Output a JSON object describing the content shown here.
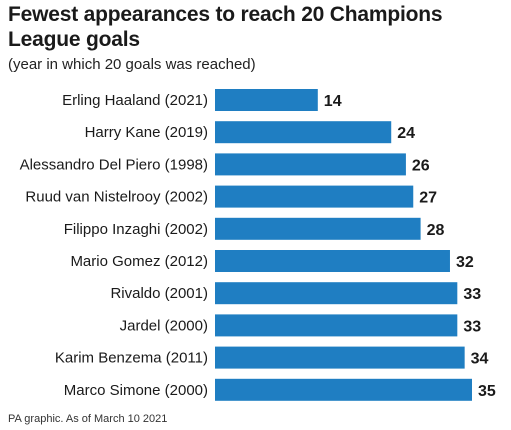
{
  "chart_data": {
    "type": "bar",
    "orientation": "horizontal",
    "title": "Fewest appearances to reach 20 Champions League goals",
    "subtitle": "(year in which 20 goals was reached)",
    "categories": [
      "Erling Haaland (2021)",
      "Harry Kane (2019)",
      "Alessandro Del Piero (1998)",
      "Ruud van Nistelrooy (2002)",
      "Filippo Inzaghi (2002)",
      "Mario Gomez (2012)",
      "Rivaldo (2001)",
      "Jardel (2000)",
      "Karim Benzema (2011)",
      "Marco Simone (2000)"
    ],
    "values": [
      14,
      24,
      26,
      27,
      28,
      32,
      33,
      33,
      34,
      35
    ],
    "xlim": [
      0,
      35
    ],
    "bar_color": "#1f7ec2",
    "grid": false,
    "data_labels": true
  },
  "footer": "PA graphic. As of March 10 2021"
}
